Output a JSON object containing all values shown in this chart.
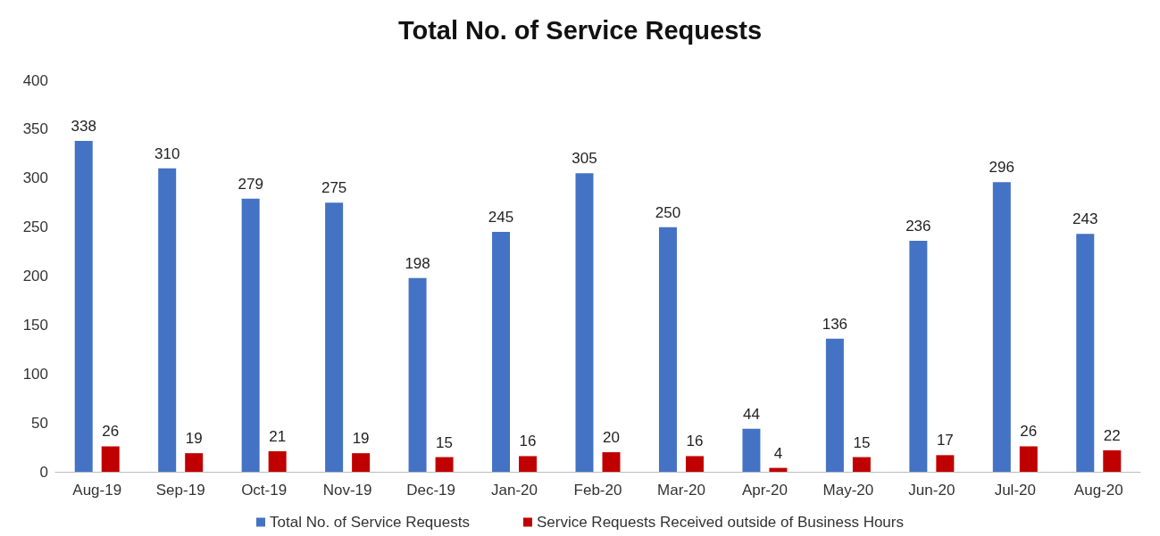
{
  "chart_data": {
    "type": "bar",
    "title": "Total No. of Service Requests",
    "categories": [
      "Aug-19",
      "Sep-19",
      "Oct-19",
      "Nov-19",
      "Dec-19",
      "Jan-20",
      "Feb-20",
      "Mar-20",
      "Apr-20",
      "May-20",
      "Jun-20",
      "Jul-20",
      "Aug-20"
    ],
    "series": [
      {
        "name": "Total No. of Service Requests",
        "color": "#4472c4",
        "values": [
          338,
          310,
          279,
          275,
          198,
          245,
          305,
          250,
          44,
          136,
          236,
          296,
          243
        ]
      },
      {
        "name": "Service Requests Received outside of Business Hours",
        "color": "#c00000",
        "values": [
          26,
          19,
          21,
          19,
          15,
          16,
          20,
          16,
          4,
          15,
          17,
          26,
          22
        ]
      }
    ],
    "ylim": [
      0,
      400
    ],
    "yticks": [
      0,
      50,
      100,
      150,
      200,
      250,
      300,
      350,
      400
    ],
    "grid": false,
    "legend": "bottom",
    "data_labels": true
  }
}
